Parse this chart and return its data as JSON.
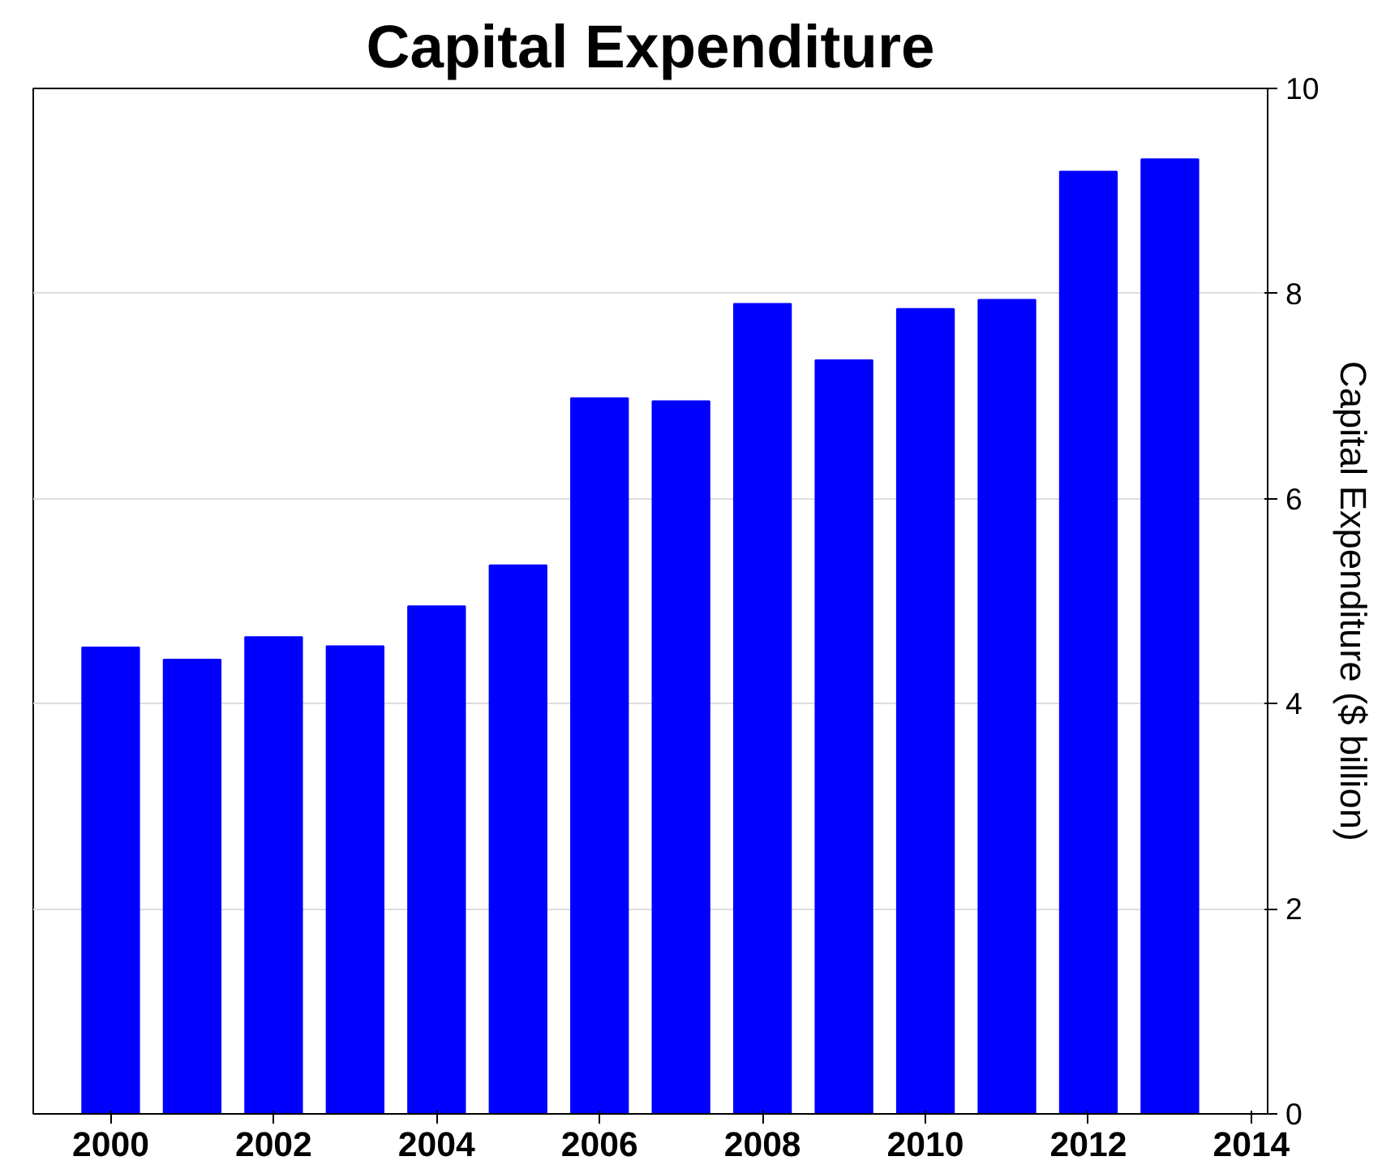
{
  "chart_data": {
    "type": "bar",
    "title": "Capital Expenditure",
    "ylabel": "Capital Expenditure ($ billion)",
    "x": [
      2000,
      2001,
      2002,
      2003,
      2004,
      2005,
      2006,
      2007,
      2008,
      2009,
      2010,
      2011,
      2012,
      2013
    ],
    "values": [
      4.55,
      4.43,
      4.65,
      4.56,
      4.95,
      5.35,
      6.98,
      6.95,
      7.9,
      7.35,
      7.85,
      7.94,
      9.19,
      9.31
    ],
    "color": "#0000ff",
    "xlim": [
      1999.05,
      2014.2
    ],
    "xticks": [
      2000,
      2002,
      2004,
      2006,
      2008,
      2010,
      2012,
      2014
    ],
    "ylim": [
      0,
      10
    ],
    "yticks": [
      0,
      2,
      4,
      6,
      8,
      10
    ],
    "grid": "y"
  }
}
